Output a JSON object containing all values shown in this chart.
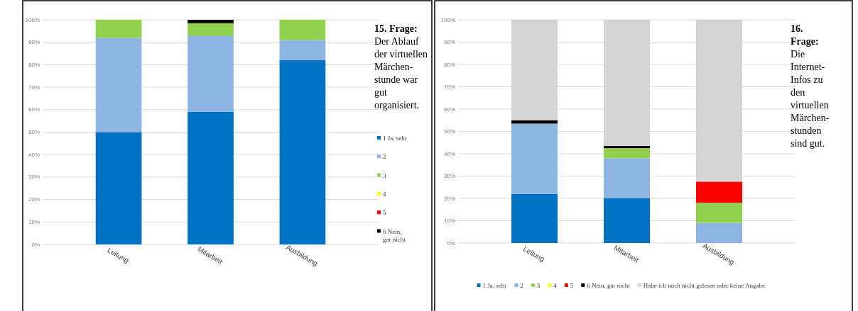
{
  "chart_data": [
    {
      "type": "bar",
      "stacked": true,
      "title": "15. Frage:",
      "subtitle": "Der Ablauf der virtuellen Märchen-stunde war gut organisiert.",
      "categories": [
        "Leitung",
        "Mitarbeit",
        "Ausbildung"
      ],
      "series": [
        {
          "name": "1 Ja, sehr",
          "color": "#0070c0",
          "values": [
            50,
            59,
            82
          ]
        },
        {
          "name": "2",
          "color": "#8eb4e3",
          "values": [
            42,
            34,
            9
          ]
        },
        {
          "name": "3",
          "color": "#92d050",
          "values": [
            8,
            5.5,
            9
          ]
        },
        {
          "name": "4",
          "color": "#ffff00",
          "values": [
            0,
            0,
            0
          ]
        },
        {
          "name": "5",
          "color": "#ff0000",
          "values": [
            0,
            0,
            0
          ]
        },
        {
          "name": "6 Nein, gar nicht",
          "color": "#000000",
          "values": [
            0,
            1.5,
            0
          ]
        }
      ],
      "ylim": [
        0,
        100
      ],
      "yticks": [
        {
          "value": 0,
          "label": "0%"
        },
        {
          "value": 10,
          "label": "10%"
        },
        {
          "value": 20,
          "label": "20%"
        },
        {
          "value": 30,
          "label": "30%"
        },
        {
          "value": 40,
          "label": "40%"
        },
        {
          "value": 50,
          "label": "50%"
        },
        {
          "value": 60,
          "label": "60%"
        },
        {
          "value": 70,
          "label": "70%"
        },
        {
          "value": 80,
          "label": "80%"
        },
        {
          "value": 90,
          "label": "90%"
        },
        {
          "value": 100,
          "label": "100%"
        }
      ],
      "grid": "y",
      "legend": "right"
    },
    {
      "type": "bar",
      "stacked": true,
      "title": "16. Frage:",
      "subtitle": "Die Internet-Infos zu den virtuellen Märchen-stunden sind gut.",
      "categories": [
        "Leitung",
        "Mitarbeit",
        "Ausbildung"
      ],
      "series": [
        {
          "name": "1 Ja, sehr",
          "color": "#0070c0",
          "values": [
            22,
            20,
            0
          ]
        },
        {
          "name": "2",
          "color": "#8eb4e3",
          "values": [
            31.5,
            18,
            9
          ]
        },
        {
          "name": "3",
          "color": "#92d050",
          "values": [
            0,
            4.5,
            9
          ]
        },
        {
          "name": "4",
          "color": "#ffff00",
          "values": [
            0,
            0,
            0
          ]
        },
        {
          "name": "5",
          "color": "#ff0000",
          "values": [
            0,
            0,
            9.5
          ]
        },
        {
          "name": "6 Nein, gar nicht",
          "color": "#000000",
          "values": [
            1.5,
            1,
            0
          ]
        },
        {
          "name": "Habe ich noch nicht gelesen oder keine Angabe",
          "color": "#d4d4d4",
          "values": [
            45,
            56.5,
            72.5
          ]
        }
      ],
      "ylim": [
        0,
        100
      ],
      "yticks": [
        {
          "value": 0,
          "label": "0%"
        },
        {
          "value": 10,
          "label": "10%"
        },
        {
          "value": 20,
          "label": "20%"
        },
        {
          "value": 30,
          "label": "30%"
        },
        {
          "value": 40,
          "label": "40%"
        },
        {
          "value": 50,
          "label": "50%"
        },
        {
          "value": 60,
          "label": "60%"
        },
        {
          "value": 70,
          "label": "70%"
        },
        {
          "value": 80,
          "label": "80%"
        },
        {
          "value": 90,
          "label": "90%"
        },
        {
          "value": 100,
          "label": "100%"
        }
      ],
      "grid": "y",
      "legend": "bottom"
    }
  ]
}
